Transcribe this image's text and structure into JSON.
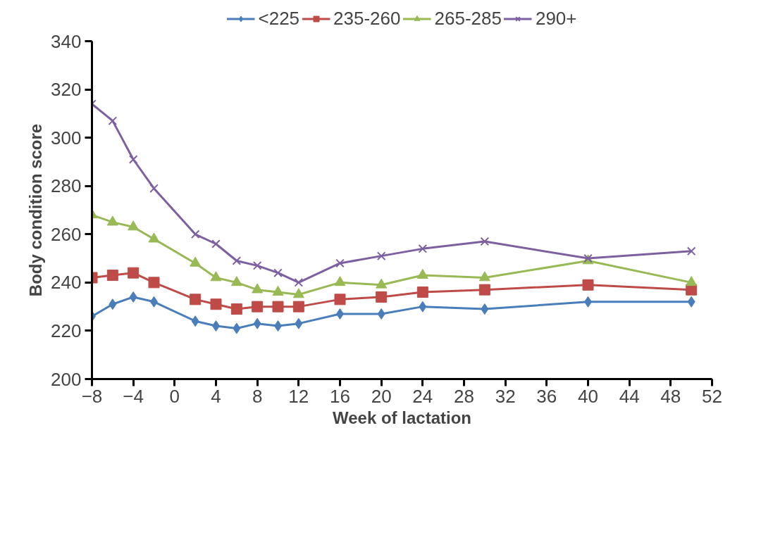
{
  "chart_data": {
    "type": "line",
    "xlabel": "Week of lactation",
    "ylabel": "Body condition score",
    "x": [
      -8,
      -6,
      -4,
      -2,
      2,
      4,
      6,
      8,
      10,
      12,
      16,
      20,
      24,
      30,
      40,
      50
    ],
    "series": [
      {
        "name": "<225",
        "color": "#4a7ebb",
        "marker": "diamond",
        "values": [
          226,
          231,
          234,
          232,
          224,
          222,
          221,
          223,
          222,
          223,
          227,
          227,
          230,
          229,
          232,
          232
        ]
      },
      {
        "name": "235-260",
        "color": "#be4b48",
        "marker": "square",
        "values": [
          242,
          243,
          244,
          240,
          233,
          231,
          229,
          230,
          230,
          230,
          233,
          234,
          236,
          237,
          239,
          237
        ]
      },
      {
        "name": "265-285",
        "color": "#98b954",
        "marker": "triangle",
        "values": [
          268,
          265,
          263,
          258,
          248,
          242,
          240,
          237,
          236,
          235,
          240,
          239,
          243,
          242,
          249,
          240
        ]
      },
      {
        "name": "290+",
        "color": "#7d60a0",
        "marker": "cross",
        "values": [
          314,
          307,
          291,
          279,
          260,
          256,
          249,
          247,
          244,
          240,
          248,
          251,
          254,
          257,
          250,
          253
        ]
      }
    ],
    "xlim": [
      -8,
      52
    ],
    "xticks": [
      -8,
      -4,
      0,
      4,
      8,
      12,
      16,
      20,
      24,
      28,
      32,
      36,
      40,
      44,
      48,
      52
    ],
    "ylim": [
      200,
      340
    ],
    "yticks": [
      200,
      220,
      240,
      260,
      280,
      300,
      320,
      340
    ],
    "grid": false,
    "legend": "top",
    "line_style": "solid"
  }
}
